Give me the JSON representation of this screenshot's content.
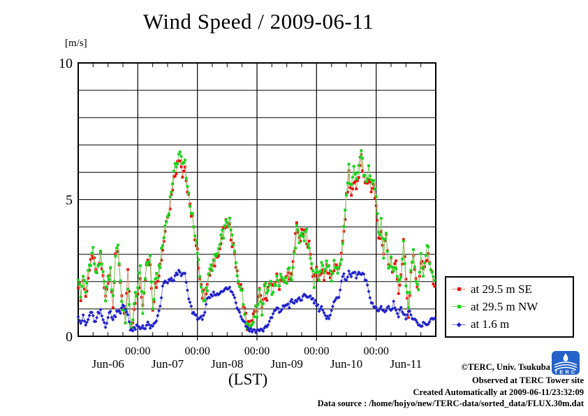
{
  "footer": {
    "copyright": "©TERC, Univ. Tsukuba",
    "observed": "Observed at TERC Tower site",
    "created": "Created Automatically at 2009-06-11/23:32:09",
    "datasource": "Data source : /home/hojyo/new/TERC-data/sorted_data/FLUX.30m.dat"
  },
  "logo": {
    "text": "TERC",
    "color": "#2563c9"
  },
  "chart_data": {
    "type": "line",
    "title": "Wind Speed / 2009-06-11",
    "ylabel": "[m/s]",
    "xlabel": "(LST)",
    "ylim": [
      0,
      10
    ],
    "grid": "on",
    "y_ticks": [
      {
        "value": 0,
        "label": "0"
      },
      {
        "value": 5,
        "label": "5"
      },
      {
        "value": 10,
        "label": "10"
      }
    ],
    "x_range_days": 6,
    "x_day_labels": [
      "Jun-06",
      "Jun-07",
      "Jun-08",
      "Jun-09",
      "Jun-10",
      "Jun-11"
    ],
    "x_major_tick_label": "00:00",
    "x_minor_tick_hours": 6,
    "sample_interval_minutes": 30,
    "legend_position": "outside-right-bottom",
    "series": [
      {
        "name": "at 29.5 m SE",
        "marker": "square",
        "marker_color": "#e8100c",
        "line_color": "#d98a70",
        "values_hourly": [
          2.0,
          1.5,
          2.1,
          1.4,
          2.2,
          2.6,
          3.0,
          2.3,
          2.4,
          3.0,
          2.1,
          1.4,
          2.1,
          2.5,
          1.2,
          2.8,
          3.2,
          2.1,
          0.8,
          0.5,
          2.4,
          0.5,
          0.4,
          1.3,
          1.7,
          2.2,
          1.0,
          2.1,
          2.8,
          2.7,
          1.1,
          1.8,
          2.2,
          2.6,
          3.2,
          3.9,
          4.5,
          4.8,
          5.5,
          6.0,
          6.3,
          6.6,
          6.0,
          6.2,
          5.3,
          4.7,
          4.4,
          3.4,
          3.0,
          2.3,
          1.5,
          1.5,
          1.9,
          2.3,
          2.5,
          2.7,
          3.1,
          3.2,
          3.6,
          4.0,
          4.1,
          3.9,
          3.5,
          3.1,
          2.2,
          1.9,
          1.6,
          1.0,
          0.4,
          0.4,
          0.6,
          0.8,
          1.1,
          1.6,
          1.0,
          1.7,
          1.5,
          1.9,
          1.7,
          2.0,
          2.1,
          1.9,
          2.2,
          1.9,
          2.2,
          2.3,
          2.1,
          3.1,
          4.3,
          3.4,
          3.7,
          3.8,
          3.6,
          3.3,
          2.5,
          2.2,
          2.5,
          2.0,
          2.4,
          2.2,
          2.6,
          2.3,
          2.1,
          2.5,
          2.4,
          2.6,
          2.9,
          3.8,
          5.0,
          5.9,
          5.1,
          5.7,
          5.4,
          6.0,
          6.5,
          5.7,
          5.5,
          5.8,
          5.4,
          5.5,
          4.7,
          3.6,
          3.9,
          2.9,
          3.7,
          2.5,
          2.8,
          2.3,
          2.6,
          1.7,
          2.2,
          3.5,
          1.9,
          0.9,
          2.3,
          3.0,
          2.1,
          1.7,
          2.7,
          2.5,
          2.8,
          3.1,
          2.5,
          1.9
        ]
      },
      {
        "name": "at 29.5 m NW",
        "marker": "square",
        "marker_color": "#17d417",
        "line_color": "#7ccb63",
        "values_hourly": [
          2.2,
          1.4,
          2.3,
          1.5,
          2.4,
          2.8,
          3.2,
          2.2,
          2.6,
          2.9,
          2.2,
          1.5,
          2.0,
          2.4,
          1.3,
          3.0,
          3.4,
          2.0,
          0.9,
          0.6,
          1.6,
          0.4,
          0.6,
          1.5,
          1.8,
          2.4,
          0.9,
          2.3,
          2.7,
          2.9,
          1.0,
          1.9,
          2.3,
          2.7,
          3.3,
          4.0,
          4.4,
          5.0,
          5.7,
          6.1,
          6.5,
          6.8,
          6.2,
          6.4,
          5.5,
          4.9,
          4.3,
          3.6,
          3.1,
          2.2,
          1.6,
          1.4,
          1.8,
          2.4,
          2.6,
          2.8,
          3.0,
          3.3,
          3.7,
          3.9,
          4.25,
          4.1,
          3.6,
          3.0,
          2.3,
          2.0,
          1.5,
          0.9,
          0.5,
          0.35,
          0.5,
          0.9,
          0.9,
          1.7,
          0.85,
          1.9,
          1.6,
          2.0,
          1.6,
          1.9,
          2.2,
          2.0,
          2.3,
          1.8,
          2.1,
          2.4,
          2.2,
          2.9,
          3.9,
          3.5,
          3.9,
          3.6,
          3.85,
          3.1,
          2.6,
          2.0,
          2.4,
          1.9,
          2.6,
          2.3,
          2.7,
          2.4,
          2.2,
          2.6,
          2.3,
          2.7,
          3.0,
          4.0,
          5.2,
          6.1,
          5.4,
          6.0,
          5.6,
          6.3,
          6.8,
          6.0,
          5.7,
          6.1,
          5.6,
          5.8,
          4.9,
          3.7,
          4.1,
          3.0,
          3.9,
          2.6,
          2.9,
          2.4,
          2.7,
          1.8,
          2.3,
          3.4,
          2.0,
          1.0,
          2.4,
          3.2,
          2.2,
          1.8,
          2.9,
          2.4,
          2.9,
          3.3,
          2.4,
          2.0
        ]
      },
      {
        "name": "at 1.6 m",
        "marker": "diamond",
        "marker_color": "#2222cc",
        "line_color": "#7379e0",
        "values_hourly": [
          0.8,
          0.5,
          0.7,
          0.4,
          0.6,
          0.9,
          0.7,
          0.5,
          0.8,
          0.9,
          0.6,
          0.4,
          0.7,
          0.9,
          0.6,
          0.8,
          1.0,
          0.9,
          1.1,
          1.0,
          0.8,
          0.3,
          0.2,
          0.3,
          0.35,
          0.25,
          0.4,
          0.3,
          0.45,
          0.35,
          0.3,
          0.5,
          0.7,
          1.1,
          1.8,
          2.0,
          1.9,
          2.1,
          2.0,
          2.2,
          2.3,
          2.4,
          2.2,
          2.3,
          1.6,
          1.2,
          0.9,
          0.8,
          0.7,
          0.6,
          0.7,
          0.9,
          1.3,
          1.4,
          1.5,
          1.6,
          1.5,
          1.6,
          1.7,
          1.75,
          1.7,
          1.75,
          1.6,
          1.4,
          1.1,
          0.9,
          0.7,
          0.5,
          0.35,
          0.25,
          0.2,
          0.25,
          0.2,
          0.25,
          0.2,
          0.3,
          0.4,
          0.5,
          0.7,
          0.9,
          1.0,
          0.9,
          1.0,
          1.1,
          1.2,
          1.1,
          1.3,
          1.2,
          1.3,
          1.4,
          1.35,
          1.45,
          1.4,
          1.5,
          1.4,
          1.3,
          1.2,
          1.0,
          1.1,
          0.8,
          0.6,
          0.7,
          1.0,
          1.2,
          1.4,
          1.5,
          2.0,
          2.2,
          2.1,
          2.3,
          2.2,
          2.35,
          2.2,
          2.3,
          2.25,
          2.2,
          2.0,
          1.6,
          1.3,
          1.1,
          1.0,
          0.9,
          1.1,
          0.9,
          1.0,
          1.1,
          0.9,
          1.2,
          1.0,
          0.8,
          1.0,
          0.9,
          0.7,
          0.9,
          0.8,
          0.6,
          0.5,
          0.4,
          0.35,
          0.45,
          0.4,
          0.5,
          0.6,
          0.7
        ]
      }
    ]
  }
}
